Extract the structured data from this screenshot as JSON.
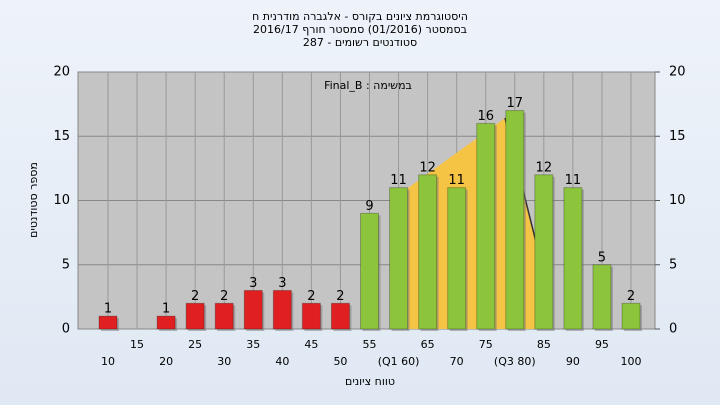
{
  "chart_data": {
    "type": "bar",
    "title": "היסטוגרמת ציונים בקורס - אלגברה מודרנית ח",
    "subtitle": "בסמסטר (01/2016) סמסטר חורף 2016/17",
    "subtitle2": "סטודנטים רשומים - 287",
    "annotation": "במשימה : Final_B",
    "x_label": "טווח ציונים",
    "y_label": "מספר סטודנטים",
    "categories": [
      "10",
      "15",
      "20",
      "25",
      "30",
      "35",
      "40",
      "45",
      "50",
      "55",
      "(Q1 60)",
      "65",
      "70",
      "75",
      "(Q3 80)",
      "85",
      "90",
      "95",
      "100"
    ],
    "values": [
      1,
      0,
      1,
      2,
      2,
      3,
      3,
      2,
      2,
      9,
      11,
      12,
      11,
      16,
      17,
      12,
      11,
      5,
      2
    ],
    "colors": [
      "#e02020",
      "#e02020",
      "#e02020",
      "#e02020",
      "#e02020",
      "#e02020",
      "#e02020",
      "#e02020",
      "#e02020",
      "#8cc43c",
      "#8cc43c",
      "#8cc43c",
      "#8cc43c",
      "#8cc43c",
      "#8cc43c",
      "#8cc43c",
      "#8cc43c",
      "#8cc43c",
      "#8cc43c"
    ],
    "ylim": [
      0,
      20
    ],
    "yticks": [
      0,
      5,
      10,
      15,
      20
    ],
    "grid": true
  }
}
